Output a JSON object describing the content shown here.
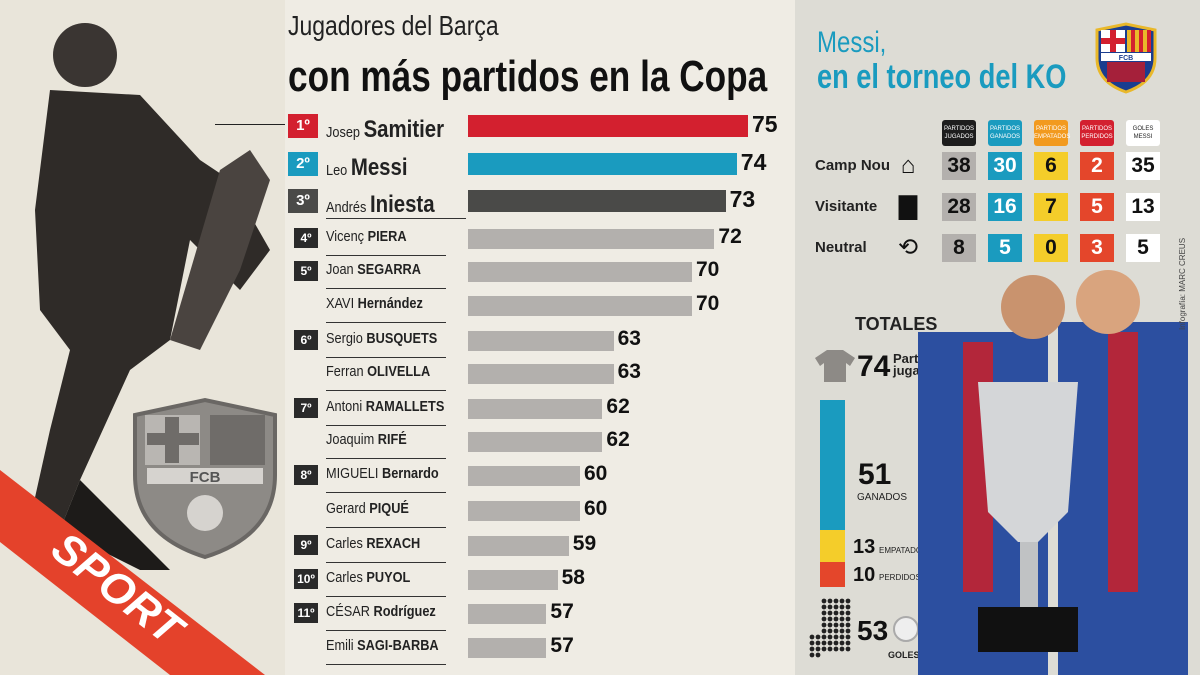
{
  "chart_data": {
    "type": "bar",
    "title": "Jugadores del Barça con más partidos en la Copa",
    "title_line1": "Jugadores del Barça",
    "title_line2": "con más partidos en la Copa",
    "rows": [
      {
        "rank": "1º",
        "first": "Josep",
        "last": "Samitier",
        "value": 75,
        "color": "#d3202f",
        "style": "big"
      },
      {
        "rank": "2º",
        "first": "Leo",
        "last": "Messi",
        "value": 74,
        "color": "#1a9bbf",
        "style": "big"
      },
      {
        "rank": "3º",
        "first": "Andrés",
        "last": "Iniesta",
        "value": 73,
        "color": "#4a4a48",
        "style": "big"
      },
      {
        "rank": "4º",
        "first": "Vicenç",
        "last": "PIERA",
        "value": 72
      },
      {
        "rank": "5º",
        "first": "Joan",
        "last": "SEGARRA",
        "value": 70
      },
      {
        "rank": "",
        "first": "XAVI",
        "last": "Hernández",
        "value": 70
      },
      {
        "rank": "6º",
        "first": "Sergio",
        "last": "BUSQUETS",
        "value": 63
      },
      {
        "rank": "",
        "first": "Ferran",
        "last": "OLIVELLA",
        "value": 63
      },
      {
        "rank": "7º",
        "first": "Antoni",
        "last": "RAMALLETS",
        "value": 62
      },
      {
        "rank": "",
        "first": "Joaquim",
        "last": "RIFÉ",
        "value": 62
      },
      {
        "rank": "8º",
        "first": "MIGUELI",
        "last": "Bernardo",
        "value": 60
      },
      {
        "rank": "",
        "first": "Gerard",
        "last": "PIQUÉ",
        "value": 60
      },
      {
        "rank": "9º",
        "first": "Carles",
        "last": "REXACH",
        "value": 59
      },
      {
        "rank": "10º",
        "first": "Carles",
        "last": "PUYOL",
        "value": 58
      },
      {
        "rank": "11º",
        "first": "CÉSAR",
        "last": "Rodríguez",
        "value": 57
      },
      {
        "rank": "",
        "first": "Emili",
        "last": "SAGI-BARBA",
        "value": 57
      }
    ]
  },
  "brand": "SPORT",
  "crest_text": "FCB",
  "messi": {
    "title1": "Messi,",
    "title2": "en el torneo del KO",
    "headers": [
      {
        "l1": "PARTIDOS",
        "l2": "JUGADOS",
        "color": "#1d1d1d"
      },
      {
        "l1": "PARTIDOS",
        "l2": "GANADOS",
        "color": "#1a9bbf"
      },
      {
        "l1": "PARTIDOS",
        "l2": "EMPATADOS",
        "color": "#f29a1f"
      },
      {
        "l1": "PARTIDOS",
        "l2": "PERDIDOS",
        "color": "#d3202f"
      },
      {
        "l1": "GOLES",
        "l2": "MESSI",
        "color": "#ffffff"
      }
    ],
    "cell_colors": [
      "#b3b0ad",
      "#1a9bbf",
      "#f4cd2a",
      "#e4462b",
      "#ffffff"
    ],
    "rows": [
      {
        "label": "Camp Nou",
        "icon": "house-icon",
        "values": [
          "38",
          "30",
          "6",
          "2",
          "35"
        ]
      },
      {
        "label": "Visitante",
        "icon": "suitcase-icon",
        "values": [
          "28",
          "16",
          "7",
          "5",
          "13"
        ]
      },
      {
        "label": "Neutral",
        "icon": "exchange-icon",
        "values": [
          "8",
          "5",
          "0",
          "3",
          "5"
        ]
      }
    ],
    "totales": "TOTALES",
    "jugados": {
      "value": "74",
      "label1": "Partidos",
      "label2": "jugados"
    },
    "ganados": {
      "value": "51",
      "label": "GANADOS"
    },
    "empatados": {
      "value": "13",
      "label": "EMPATADOS"
    },
    "perdidos": {
      "value": "10",
      "label": "PERDIDOS"
    },
    "goles": {
      "value": "53",
      "label": "GOLES"
    },
    "credit": "Infografía: MARC CREUS"
  }
}
